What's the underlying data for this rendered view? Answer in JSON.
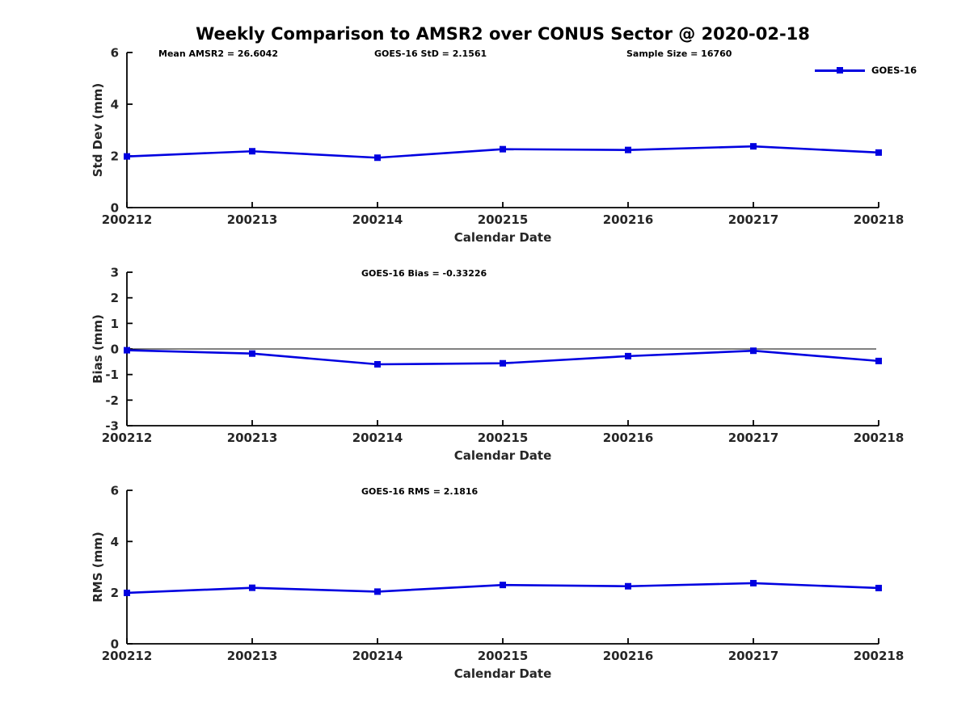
{
  "title": "Weekly Comparison to AMSR2 over CONUS Sector @ 2020-02-18",
  "legend": {
    "label": "GOES-16",
    "position": "top-right"
  },
  "colors": {
    "line": "#0000E0",
    "axis": "#000000",
    "text": "#262626",
    "background": "#FFFFFF"
  },
  "chart_data": [
    {
      "type": "line",
      "id": "std-dev",
      "ylabel": "Std Dev (mm)",
      "xlabel": "Calendar Date",
      "ylim": [
        0,
        6
      ],
      "yticks": [
        0,
        2,
        4,
        6
      ],
      "grid": false,
      "legend_position": "top-right-outside",
      "categories": [
        "200212",
        "200213",
        "200214",
        "200215",
        "200216",
        "200217",
        "200218"
      ],
      "annotations": [
        "Mean AMSR2 = 26.6042",
        "GOES-16 StD = 2.1561",
        "Sample Size = 16760"
      ],
      "series": [
        {
          "name": "GOES-16",
          "values": [
            1.98,
            2.18,
            1.93,
            2.26,
            2.23,
            2.37,
            2.13
          ]
        }
      ]
    },
    {
      "type": "line",
      "id": "bias",
      "ylabel": "Bias (mm)",
      "xlabel": "Calendar Date",
      "ylim": [
        -3,
        3
      ],
      "yticks": [
        3,
        2,
        1,
        0,
        -1,
        -2,
        -3
      ],
      "grid": false,
      "zero_line": true,
      "categories": [
        "200212",
        "200213",
        "200214",
        "200215",
        "200216",
        "200217",
        "200218"
      ],
      "annotations": [
        "GOES-16 Bias  = -0.33226"
      ],
      "series": [
        {
          "name": "GOES-16",
          "values": [
            -0.05,
            -0.18,
            -0.6,
            -0.56,
            -0.28,
            -0.07,
            -0.47
          ]
        }
      ]
    },
    {
      "type": "line",
      "id": "rms",
      "ylabel": "RMS (mm)",
      "xlabel": "Calendar Date",
      "ylim": [
        0,
        6
      ],
      "yticks": [
        0,
        2,
        4,
        6
      ],
      "grid": false,
      "categories": [
        "200212",
        "200213",
        "200214",
        "200215",
        "200216",
        "200217",
        "200218"
      ],
      "annotations": [
        "GOES-16 RMS = 2.1816"
      ],
      "series": [
        {
          "name": "GOES-16",
          "values": [
            1.99,
            2.19,
            2.04,
            2.3,
            2.25,
            2.37,
            2.18
          ]
        }
      ]
    }
  ]
}
